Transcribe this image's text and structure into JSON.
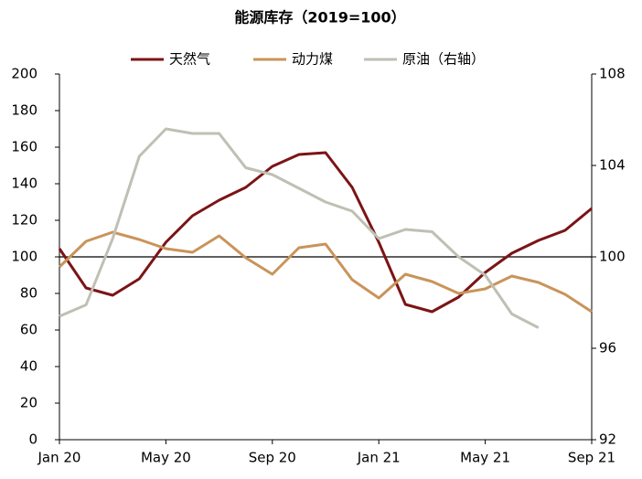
{
  "chart_data": {
    "type": "line",
    "title": "能源库存（2019=100）",
    "categories": [
      "Jan 20",
      null,
      null,
      null,
      "May 20",
      null,
      null,
      null,
      "Sep 20",
      null,
      null,
      null,
      "Jan 21",
      null,
      null,
      null,
      "May 21",
      null,
      null,
      null,
      "Sep 21"
    ],
    "series": [
      {
        "name": "天然气",
        "color": "#7b1416",
        "values": [
          104.5,
          83,
          79,
          88,
          108,
          122.5,
          131,
          138,
          149.5,
          156,
          157,
          138,
          108,
          74,
          70,
          78,
          91.5,
          102,
          109,
          114.5,
          126.5
        ]
      },
      {
        "name": "动力煤",
        "color": "#c9945a",
        "values": [
          94.5,
          108.5,
          113.5,
          109.5,
          104.5,
          102.5,
          111.5,
          99.5,
          90.5,
          105,
          107,
          87.5,
          77.5,
          90.5,
          86.5,
          80,
          82.5,
          89.5,
          86,
          79.5,
          70
        ]
      },
      {
        "name": "原油（右轴）",
        "color": "#bfbfb4",
        "axis": "y2",
        "values": [
          97.4,
          97.9,
          100.8,
          104.4,
          105.6,
          105.4,
          105.4,
          103.9,
          103.6,
          103.0,
          102.4,
          102.0,
          100.8,
          101.2,
          101.1,
          100.0,
          99.2,
          97.5,
          96.9,
          null,
          null
        ]
      }
    ],
    "ylim": [
      0,
      200
    ],
    "yticks": [
      0,
      20,
      40,
      60,
      80,
      100,
      120,
      140,
      160,
      180,
      200
    ],
    "y2lim": [
      92,
      108
    ],
    "y2ticks": [
      92,
      96,
      100,
      104,
      108
    ],
    "reference_line": 100,
    "legend": "top",
    "grid": false
  }
}
